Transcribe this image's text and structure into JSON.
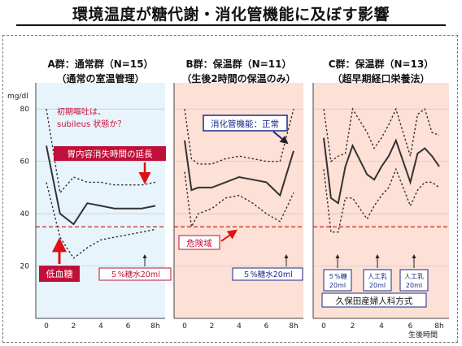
{
  "title": "環境温度が糖代謝・消化管機能に及ぼす影響",
  "chart_data": [
    {
      "type": "line",
      "panel_title": [
        "A群：通常群（N=15）",
        "（通常の室温管理）"
      ],
      "x": [
        0,
        1,
        2,
        3,
        4,
        5,
        6,
        7,
        8
      ],
      "xticks": [
        "0",
        "2",
        "4",
        "6",
        "8h"
      ],
      "ylim": [
        0,
        90
      ],
      "yticks": [
        20,
        40,
        60,
        80
      ],
      "ylabel": "mg/dl",
      "background": "#e8f4fb",
      "danger_line": 35,
      "series": [
        {
          "role": "upper",
          "values": [
            80,
            48,
            54,
            52,
            52,
            51,
            51,
            51,
            52
          ]
        },
        {
          "role": "mean",
          "values": [
            66,
            40,
            36,
            44,
            43,
            42,
            42,
            42,
            43
          ]
        },
        {
          "role": "lower",
          "values": [
            52,
            31,
            23,
            27,
            30,
            31,
            32,
            33,
            34
          ]
        }
      ]
    },
    {
      "type": "line",
      "panel_title": [
        "B群：保温群（N=11）",
        "（生後2時間の保温のみ）"
      ],
      "x": [
        0,
        0.5,
        1,
        2,
        3,
        4,
        5,
        6,
        7,
        8
      ],
      "xticks": [
        "0",
        "2",
        "4",
        "6",
        "8h"
      ],
      "ylim": [
        0,
        90
      ],
      "background": "#fde0d6",
      "danger_line": 35,
      "series": [
        {
          "role": "upper",
          "values": [
            80,
            61,
            59,
            59,
            61,
            62,
            61,
            60,
            60,
            80
          ]
        },
        {
          "role": "mean",
          "values": [
            68,
            49,
            50,
            50,
            52,
            54,
            53,
            52,
            47,
            64
          ]
        },
        {
          "role": "lower",
          "values": [
            56,
            35,
            40,
            42,
            46,
            47,
            44,
            40,
            37,
            48
          ]
        }
      ]
    },
    {
      "type": "line",
      "panel_title": [
        "C群：保温群（N=13）",
        "（超早期経口栄養法）"
      ],
      "x": [
        0,
        0.5,
        1,
        1.5,
        2,
        3,
        3.5,
        4,
        4.5,
        5,
        6,
        6.5,
        7,
        7.5,
        8
      ],
      "xticks": [
        "0",
        "2",
        "4",
        "6",
        "8h"
      ],
      "ylim": [
        0,
        90
      ],
      "background": "#fde0d6",
      "danger_line": 35,
      "series": [
        {
          "role": "upper",
          "values": [
            80,
            60,
            62,
            63,
            80,
            71,
            65,
            69,
            74,
            80,
            62,
            78,
            80,
            71,
            70
          ]
        },
        {
          "role": "mean",
          "values": [
            69,
            46,
            44,
            58,
            66,
            55,
            53,
            58,
            62,
            68,
            52,
            63,
            65,
            62,
            58
          ]
        },
        {
          "role": "lower",
          "values": [
            57,
            33,
            33,
            46,
            46,
            38,
            43,
            47,
            50,
            57,
            43,
            49,
            52,
            52,
            50
          ]
        }
      ]
    }
  ],
  "annotations": {
    "a_note_1": "初期嘔吐は、",
    "a_note_2": "subileus 状態か？",
    "a_gastric": "胃内容消失時間の延長",
    "a_hypo": "低血糖",
    "a_glucose": "５%糖水20ml",
    "b_gi": "消化管機能：正常",
    "b_danger": "危険域",
    "b_glucose": "５%糖水20ml",
    "c_box1": [
      "５%糖",
      "20ml"
    ],
    "c_box2": [
      "人工乳",
      "20ml"
    ],
    "c_box3": [
      "人工乳",
      "20ml"
    ],
    "c_method": "久保田産婦人科方式",
    "x_footer": "生後時間"
  },
  "colors": {
    "mean_line": "#333333",
    "band_line": "#333333",
    "danger_line": "#cc2222",
    "label_red_bg": "#c0103a",
    "label_blue_border": "#1a2a8a",
    "note_red_text": "#c0103a",
    "arrow_red": "#dd1111"
  }
}
